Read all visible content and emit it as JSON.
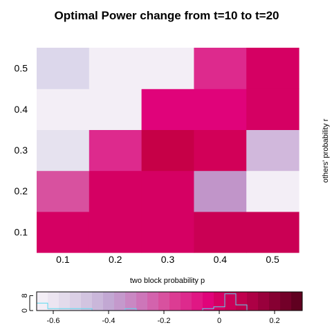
{
  "chart_data": [
    {
      "type": "heatmap",
      "title": "Optimal Power change from t=10 to t=20",
      "xlabel": "two block probability p",
      "ylabel": "others' probability r",
      "x": [
        "0.1",
        "0.2",
        "0.3",
        "0.4",
        "0.5"
      ],
      "y": [
        "0.1",
        "0.2",
        "0.3",
        "0.4",
        "0.5"
      ],
      "colors": [
        [
          "#d50063",
          "#d50063",
          "#d50063",
          "#ca0054",
          "#ca0054"
        ],
        [
          "#d8519f",
          "#d50063",
          "#d50063",
          "#c195c9",
          "#f3eef6"
        ],
        [
          "#e6e2ef",
          "#dd2a8d",
          "#c60047",
          "#d20058",
          "#d1b8dc"
        ],
        [
          "#f3eef6",
          "#f3eef6",
          "#e0037a",
          "#e0037a",
          "#d50063"
        ],
        [
          "#dcd7eb",
          "#f3eef6",
          "#f3eef6",
          "#dd2a8d",
          "#d50063"
        ]
      ]
    },
    {
      "type": "histogram",
      "x_ticks": [
        "-0.6",
        "-0.4",
        "-0.2",
        "0",
        "0.2"
      ],
      "x_range": [
        -0.66,
        0.3
      ],
      "y_ticks": [
        "0",
        "8"
      ],
      "y_range": [
        0,
        10
      ],
      "bin_edges": [
        -0.66,
        -0.62,
        -0.58,
        -0.54,
        -0.5,
        -0.46,
        -0.42,
        -0.38,
        -0.34,
        -0.3,
        -0.26,
        -0.22,
        -0.18,
        -0.14,
        -0.1,
        -0.06,
        -0.02,
        0.02,
        0.06,
        0.1,
        0.14,
        0.18,
        0.22,
        0.26,
        0.3
      ],
      "counts": [
        4,
        1,
        1,
        1,
        1,
        0,
        0,
        0,
        1,
        0,
        0,
        0,
        0,
        0,
        0,
        1,
        2,
        9,
        3,
        0,
        0,
        0,
        0,
        0
      ],
      "line_color": "#5bd9ee",
      "palette": [
        "#f3eef6",
        "#ece5f1",
        "#e3dbeb",
        "#dbd0e6",
        "#d2c4e0",
        "#cab7da",
        "#c2a8d3",
        "#c499cc",
        "#c988c3",
        "#cd76b9",
        "#d363ad",
        "#d8519f",
        "#dc3c93",
        "#dd2a8d",
        "#e01784",
        "#e0037a",
        "#d50063",
        "#cb0058",
        "#c0004e",
        "#ad0045",
        "#99003c",
        "#860032",
        "#730029",
        "#600020"
      ]
    }
  ]
}
